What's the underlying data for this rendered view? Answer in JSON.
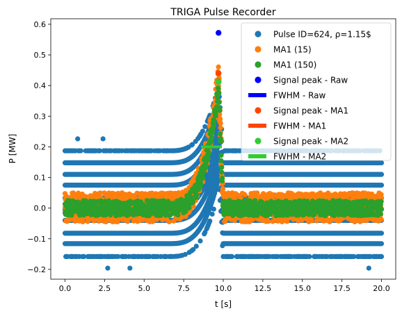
{
  "chart_data": {
    "type": "scatter",
    "title": "TRIGA Pulse Recorder",
    "xlabel": "t [s]",
    "ylabel": "P [MW]",
    "xlim": [
      -0.9,
      20.9
    ],
    "ylim": [
      -0.232,
      0.618
    ],
    "xticks": [
      0.0,
      2.5,
      5.0,
      7.5,
      10.0,
      12.5,
      15.0,
      17.5,
      20.0
    ],
    "xtick_labels": [
      "0.0",
      "2.5",
      "5.0",
      "7.5",
      "10.0",
      "12.5",
      "15.0",
      "17.5",
      "20.0"
    ],
    "yticks": [
      -0.2,
      -0.1,
      0.0,
      0.1,
      0.2,
      0.3,
      0.4,
      0.5,
      0.6
    ],
    "ytick_labels": [
      "−0.2",
      "−0.1",
      "0.0",
      "0.1",
      "0.2",
      "0.3",
      "0.4",
      "0.5",
      "0.6"
    ],
    "grid": false,
    "legend_position": "top-right",
    "pulse": {
      "baseline_levels": [
        -0.158,
        -0.116,
        -0.082,
        -0.04,
        -0.004,
        0.033,
        0.075,
        0.11,
        0.148,
        0.187
      ],
      "rise_start": 6.5,
      "peak_time": 9.7,
      "decay_end": 10.0,
      "fwhm_level": 0.2,
      "fwhm_start": 8.6,
      "fwhm_end": 9.9
    },
    "series": [
      {
        "name": "Pulse ID=624, ρ=1.15$",
        "kind": "scatter",
        "color": "#1f77b4",
        "y_range_baseline": [
          -0.158,
          0.187
        ],
        "outliers": [
          [
            0.8,
            0.226
          ],
          [
            2.4,
            0.226
          ],
          [
            2.7,
            -0.196
          ],
          [
            4.1,
            -0.196
          ],
          [
            19.2,
            -0.196
          ]
        ]
      },
      {
        "name": "MA1 (15)",
        "kind": "scatter",
        "color": "#ff7f0e",
        "y_range_baseline": [
          -0.045,
          0.05
        ]
      },
      {
        "name": "MA1 (150)",
        "kind": "scatter",
        "color": "#2ca02c",
        "y_range_baseline": [
          -0.025,
          0.025
        ]
      },
      {
        "name": "Signal peak - Raw",
        "kind": "marker",
        "color": "#0000ff",
        "x": 9.7,
        "y": 0.572
      },
      {
        "name": "FWHM - Raw",
        "kind": "line",
        "color": "#0000ff",
        "x": [
          8.6,
          9.9
        ],
        "y": [
          0.2,
          0.2
        ]
      },
      {
        "name": "Signal peak - MA1",
        "kind": "marker",
        "color": "#ff4500",
        "x": 9.7,
        "y": 0.44
      },
      {
        "name": "FWHM - MA1",
        "kind": "line",
        "color": "#ff4500",
        "x": [
          8.6,
          9.9
        ],
        "y": [
          0.2,
          0.2
        ]
      },
      {
        "name": "Signal peak - MA2",
        "kind": "marker",
        "color": "#32cd32",
        "x": 9.7,
        "y": 0.412
      },
      {
        "name": "FWHM - MA2",
        "kind": "line",
        "color": "#32cd32",
        "x": [
          8.6,
          9.9
        ],
        "y": [
          0.2,
          0.2
        ]
      }
    ]
  }
}
